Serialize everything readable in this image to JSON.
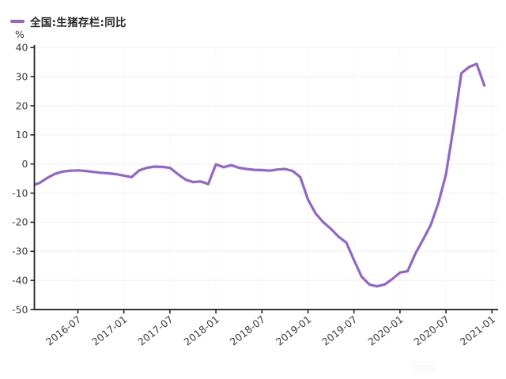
{
  "legend": {
    "label": "全国:生猪存栏:同比"
  },
  "y_axis": {
    "unit": "%",
    "ticks": [
      40,
      30,
      20,
      10,
      0,
      -10,
      -20,
      -30,
      -40,
      -50
    ],
    "min": -50,
    "max": 40
  },
  "x_axis": {
    "tick_labels": [
      "2016-07",
      "2017-01",
      "2017-07",
      "2018-01",
      "2018-07",
      "2019-01",
      "2019-07",
      "2020-01",
      "2020-07",
      "2021-01"
    ]
  },
  "colors": {
    "line": "#9165cb",
    "axis": "#262626",
    "tick_label": "#3c3c3c",
    "grid_h": "#efefef",
    "grid_v": "#f6f6f8",
    "background": "#ffffff"
  },
  "chart_data": {
    "type": "line",
    "title": "全国:生猪存栏:同比",
    "ylabel": "%",
    "ylim": [
      -50,
      40
    ],
    "grid": true,
    "legend_position": "top-left",
    "x": [
      "2016-01",
      "2016-02",
      "2016-03",
      "2016-04",
      "2016-05",
      "2016-06",
      "2016-07",
      "2016-08",
      "2016-09",
      "2016-10",
      "2016-11",
      "2016-12",
      "2017-01",
      "2017-02",
      "2017-03",
      "2017-04",
      "2017-05",
      "2017-06",
      "2017-07",
      "2017-08",
      "2017-09",
      "2017-10",
      "2017-11",
      "2017-12",
      "2018-01",
      "2018-02",
      "2018-03",
      "2018-04",
      "2018-05",
      "2018-06",
      "2018-07",
      "2018-08",
      "2018-09",
      "2018-10",
      "2018-11",
      "2018-12",
      "2019-01",
      "2019-02",
      "2019-03",
      "2019-04",
      "2019-05",
      "2019-06",
      "2019-07",
      "2019-08",
      "2019-09",
      "2019-10",
      "2019-11",
      "2019-12",
      "2020-01",
      "2020-02",
      "2020-03",
      "2020-04",
      "2020-05",
      "2020-06",
      "2020-07",
      "2020-08",
      "2020-09",
      "2020-10",
      "2020-11",
      "2020-12"
    ],
    "series": [
      {
        "name": "全国:生猪存栏:同比",
        "color": "#9165cb",
        "values": [
          -7.4,
          -6.5,
          -4.8,
          -3.4,
          -2.6,
          -2.3,
          -2.2,
          -2.4,
          -2.7,
          -3.0,
          -3.2,
          -3.5,
          -4.0,
          -4.5,
          -2.2,
          -1.3,
          -0.9,
          -1.0,
          -1.3,
          -3.4,
          -5.3,
          -6.2,
          -6.0,
          -6.9,
          -0.1,
          -1.1,
          -0.4,
          -1.3,
          -1.7,
          -2.0,
          -2.1,
          -2.3,
          -1.9,
          -1.7,
          -2.4,
          -4.5,
          -12.2,
          -17.0,
          -20.0,
          -22.3,
          -25.0,
          -27.0,
          -33.0,
          -38.7,
          -41.4,
          -42.0,
          -41.4,
          -39.5,
          -37.3,
          -36.8,
          -30.8,
          -26.0,
          -21.0,
          -13.5,
          -3.5,
          13.0,
          31.2,
          33.3,
          34.4,
          27.0
        ]
      }
    ],
    "x_tick_month_indices": [
      6,
      12,
      18,
      24,
      30,
      36,
      42,
      48,
      54,
      60
    ]
  }
}
